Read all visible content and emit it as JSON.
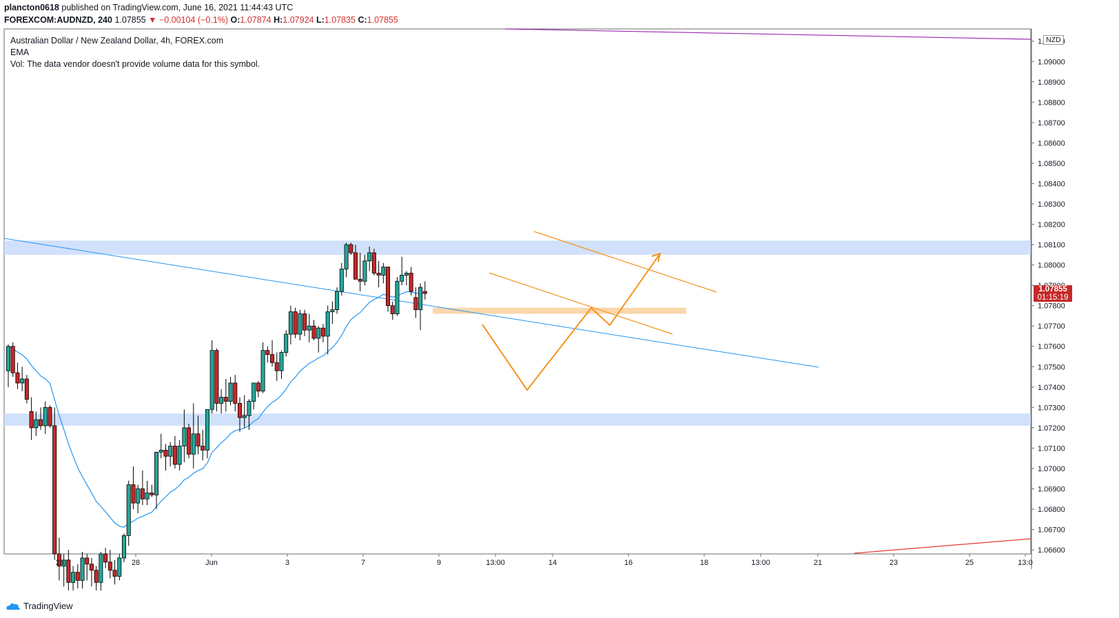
{
  "header": {
    "author": "plancton0618",
    "published": "published on TradingView.com, June 16, 2021 11:44:43 UTC",
    "symbol": "FOREXCOM:AUDNZD, 240",
    "last": "1.07855",
    "change": "▼ −0.00104 (−0.1%)",
    "o_label": "O:",
    "o_value": "1.07874",
    "h_label": "H:",
    "h_value": "1.07924",
    "l_label": "L:",
    "l_value": "1.07835",
    "c_label": "C:",
    "c_value": "1.07855"
  },
  "legend": {
    "title": "Australian Dollar / New Zealand Dollar, 4h, FOREX.com",
    "ema": "EMA",
    "vol": "Vol: The data vendor doesn't provide volume data for this symbol."
  },
  "price_tag": {
    "price": "1.07855",
    "countdown": "01:15:19"
  },
  "currency_badge": "NZD",
  "branding": "TradingView",
  "colors": {
    "up": "#26a69a",
    "down": "#c62828",
    "ema": "#2196f3",
    "zone": "#c9dcfa",
    "orange": "#f7931e",
    "purple": "#9c27b0"
  },
  "chart_data": {
    "type": "candlestick",
    "y_axis": {
      "ticks": [
        "1.09100",
        "1.09000",
        "1.08900",
        "1.08800",
        "1.08700",
        "1.08600",
        "1.08500",
        "1.08400",
        "1.08300",
        "1.08200",
        "1.08100",
        "1.08000",
        "1.07900",
        "1.07800",
        "1.07700",
        "1.07600",
        "1.07500",
        "1.07400",
        "1.07300",
        "1.07200",
        "1.07100",
        "1.07000",
        "1.06900",
        "1.06800",
        "1.06700",
        "1.06600"
      ],
      "range": [
        1.0658,
        1.0916
      ]
    },
    "x_axis": {
      "ticks": [
        "26",
        "28",
        "Jun",
        "3",
        "7",
        "9",
        "13:00",
        "14",
        "16",
        "18",
        "13:00",
        "21",
        "23",
        "25",
        "13:0"
      ]
    },
    "candles": [
      [
        1.0748,
        1.0761,
        1.074,
        1.076
      ],
      [
        1.076,
        1.0762,
        1.0745,
        1.0747
      ],
      [
        1.0747,
        1.0752,
        1.0739,
        1.0742
      ],
      [
        1.0742,
        1.075,
        1.0738,
        1.0744
      ],
      [
        1.0744,
        1.0746,
        1.0732,
        1.0734
      ],
      [
        1.0728,
        1.0735,
        1.0714,
        1.072
      ],
      [
        1.072,
        1.0728,
        1.0716,
        1.0724
      ],
      [
        1.0724,
        1.073,
        1.0719,
        1.0721
      ],
      [
        1.0721,
        1.0733,
        1.0717,
        1.073
      ],
      [
        1.073,
        1.0731,
        1.072,
        1.0721
      ],
      [
        1.0721,
        1.073,
        1.0655,
        1.0658
      ],
      [
        1.0658,
        1.0666,
        1.0645,
        1.0652
      ],
      [
        1.0652,
        1.0658,
        1.0642,
        1.0655
      ],
      [
        1.0655,
        1.066,
        1.064,
        1.0644
      ],
      [
        1.0644,
        1.0652,
        1.064,
        1.0649
      ],
      [
        1.0649,
        1.0653,
        1.0641,
        1.0645
      ],
      [
        1.0645,
        1.0659,
        1.0641,
        1.0656
      ],
      [
        1.0656,
        1.0658,
        1.0645,
        1.0653
      ],
      [
        1.0653,
        1.0656,
        1.0642,
        1.065
      ],
      [
        1.065,
        1.0652,
        1.064,
        1.0644
      ],
      [
        1.0644,
        1.0659,
        1.064,
        1.0658
      ],
      [
        1.0658,
        1.0661,
        1.0651,
        1.0654
      ],
      [
        1.0654,
        1.066,
        1.0646,
        1.065
      ],
      [
        1.065,
        1.0655,
        1.0643,
        1.0647
      ],
      [
        1.0647,
        1.0658,
        1.0645,
        1.0656
      ],
      [
        1.0656,
        1.0668,
        1.0654,
        1.0667
      ],
      [
        1.0667,
        1.0694,
        1.0662,
        1.0692
      ],
      [
        1.0692,
        1.0701,
        1.068,
        1.0683
      ],
      [
        1.0683,
        1.0692,
        1.0678,
        1.069
      ],
      [
        1.069,
        1.0699,
        1.0682,
        1.0685
      ],
      [
        1.0685,
        1.0694,
        1.0682,
        1.0688
      ],
      [
        1.0688,
        1.0692,
        1.0686,
        1.0687
      ],
      [
        1.0687,
        1.0708,
        1.068,
        1.0708
      ],
      [
        1.0708,
        1.0717,
        1.0705,
        1.0709
      ],
      [
        1.0709,
        1.0712,
        1.0699,
        1.0706
      ],
      [
        1.0706,
        1.0713,
        1.0701,
        1.0711
      ],
      [
        1.0711,
        1.0716,
        1.07,
        1.0702
      ],
      [
        1.0702,
        1.0714,
        1.0699,
        1.0711
      ],
      [
        1.0711,
        1.0729,
        1.0703,
        1.072
      ],
      [
        1.072,
        1.0722,
        1.0705,
        1.0707
      ],
      [
        1.0707,
        1.0732,
        1.07,
        1.0717
      ],
      [
        1.0717,
        1.0726,
        1.0707,
        1.0711
      ],
      [
        1.0711,
        1.0719,
        1.0704,
        1.0709
      ],
      [
        1.0709,
        1.0728,
        1.0705,
        1.0729
      ],
      [
        1.0729,
        1.0763,
        1.0727,
        1.0758
      ],
      [
        1.0758,
        1.0759,
        1.0728,
        1.0732
      ],
      [
        1.0732,
        1.0739,
        1.0727,
        1.0735
      ],
      [
        1.0735,
        1.0744,
        1.0728,
        1.0733
      ],
      [
        1.0733,
        1.0745,
        1.0731,
        1.0742
      ],
      [
        1.0742,
        1.0746,
        1.0728,
        1.0732
      ],
      [
        1.0732,
        1.0735,
        1.0718,
        1.0725
      ],
      [
        1.0725,
        1.0736,
        1.072,
        1.0726
      ],
      [
        1.0726,
        1.0734,
        1.0719,
        1.0733
      ],
      [
        1.0733,
        1.0742,
        1.0729,
        1.0742
      ],
      [
        1.0742,
        1.0743,
        1.0735,
        1.0738
      ],
      [
        1.0738,
        1.0762,
        1.0737,
        1.0758
      ],
      [
        1.0758,
        1.076,
        1.0752,
        1.0756
      ],
      [
        1.0756,
        1.0763,
        1.075,
        1.0752
      ],
      [
        1.0752,
        1.0757,
        1.0743,
        1.0748
      ],
      [
        1.0748,
        1.0758,
        1.0744,
        1.0757
      ],
      [
        1.0757,
        1.0768,
        1.0755,
        1.0766
      ],
      [
        1.0766,
        1.078,
        1.0761,
        1.0777
      ],
      [
        1.0777,
        1.0779,
        1.0764,
        1.0766
      ],
      [
        1.0766,
        1.0778,
        1.0763,
        1.0776
      ],
      [
        1.0776,
        1.0778,
        1.0765,
        1.0768
      ],
      [
        1.0768,
        1.0776,
        1.0762,
        1.077
      ],
      [
        1.077,
        1.0773,
        1.0763,
        1.0764
      ],
      [
        1.0764,
        1.077,
        1.0757,
        1.0769
      ],
      [
        1.0769,
        1.0771,
        1.0762,
        1.0765
      ],
      [
        1.0765,
        1.078,
        1.0756,
        1.0777
      ],
      [
        1.0777,
        1.0782,
        1.0771,
        1.0778
      ],
      [
        1.0778,
        1.0789,
        1.0776,
        1.0787
      ],
      [
        1.0787,
        1.0801,
        1.0785,
        1.0798
      ],
      [
        1.0798,
        1.0811,
        1.0794,
        1.081
      ],
      [
        1.081,
        1.0811,
        1.0805,
        1.0806
      ],
      [
        1.0806,
        1.081,
        1.0793,
        1.0793
      ],
      [
        1.0793,
        1.0806,
        1.0787,
        1.0792
      ],
      [
        1.0792,
        1.0805,
        1.079,
        1.0802
      ],
      [
        1.0802,
        1.0809,
        1.0797,
        1.0806
      ],
      [
        1.0806,
        1.0808,
        1.0795,
        1.0796
      ],
      [
        1.0796,
        1.0802,
        1.0789,
        1.0795
      ],
      [
        1.0795,
        1.0801,
        1.0791,
        1.0799
      ],
      [
        1.0799,
        1.0799,
        1.0777,
        1.078
      ],
      [
        1.078,
        1.0782,
        1.0773,
        1.0776
      ],
      [
        1.0776,
        1.0794,
        1.0775,
        1.0792
      ],
      [
        1.0792,
        1.0804,
        1.079,
        1.0795
      ],
      [
        1.0795,
        1.0797,
        1.079,
        1.0796
      ],
      [
        1.0796,
        1.0799,
        1.0785,
        1.0787
      ],
      [
        1.0784,
        1.0789,
        1.0774,
        1.0778
      ],
      [
        1.0778,
        1.0791,
        1.0768,
        1.0789
      ],
      [
        1.0787,
        1.0792,
        1.0783,
        1.0786
      ]
    ]
  }
}
